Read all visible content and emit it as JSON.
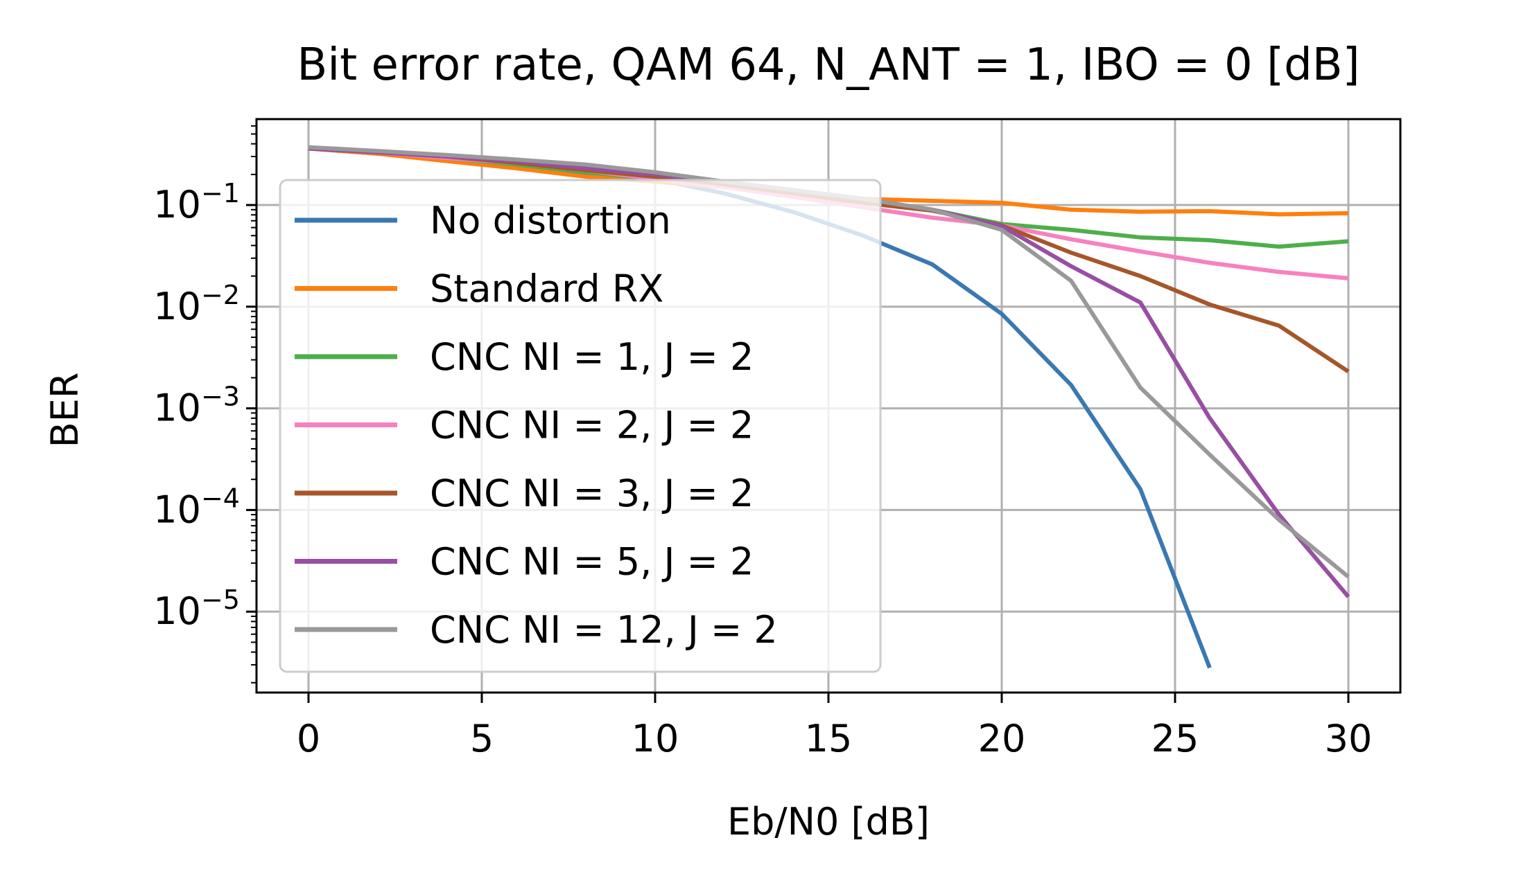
{
  "chart_data": {
    "type": "line",
    "title": "Bit error rate, QAM 64, N_ANT = 1, IBO = 0 [dB]",
    "xlabel": "Eb/N0 [dB]",
    "ylabel": "BER",
    "xlim": [
      -1.5,
      31.5
    ],
    "ylim": [
      1.6e-06,
      0.7
    ],
    "yscale": "log",
    "grid": true,
    "legend_position": "center-left",
    "x_ticks": [
      "0",
      "5",
      "10",
      "15",
      "20",
      "25",
      "30"
    ],
    "x_tick_values": [
      0,
      5,
      10,
      15,
      20,
      25,
      30
    ],
    "y_tick_exponents": [
      "−1",
      "−2",
      "−3",
      "−4",
      "−5"
    ],
    "y_tick_values": [
      0.1,
      0.01,
      0.001,
      0.0001,
      1e-05
    ],
    "y_tick_base": "10",
    "x": [
      0,
      2,
      4,
      6,
      8,
      10,
      12,
      14,
      16,
      18,
      20,
      22,
      24,
      26,
      28,
      30
    ],
    "series": [
      {
        "name": "No distortion",
        "color": "#3979b2",
        "values": [
          0.36,
          0.32,
          0.28,
          0.24,
          0.2,
          0.18,
          0.13,
          0.085,
          0.05,
          0.026,
          0.0085,
          0.0017,
          0.00016,
          2.8e-06,
          null,
          null
        ]
      },
      {
        "name": "Standard RX",
        "color": "#ff7f0e",
        "values": [
          0.36,
          0.32,
          0.27,
          0.23,
          0.19,
          0.17,
          0.15,
          0.13,
          0.115,
          0.11,
          0.105,
          0.09,
          0.086,
          0.087,
          0.081,
          0.083
        ]
      },
      {
        "name": "CNC NI = 1, J = 2",
        "color": "#4daf4a",
        "values": [
          0.36,
          0.33,
          0.29,
          0.25,
          0.21,
          0.18,
          0.16,
          0.13,
          0.11,
          0.09,
          0.065,
          0.057,
          0.048,
          0.045,
          0.039,
          0.044
        ]
      },
      {
        "name": "CNC NI = 2, J = 2",
        "color": "#f781bf",
        "values": [
          0.36,
          0.33,
          0.29,
          0.26,
          0.22,
          0.18,
          0.15,
          0.12,
          0.095,
          0.075,
          0.063,
          0.046,
          0.035,
          0.027,
          0.022,
          0.019
        ]
      },
      {
        "name": "CNC NI = 3, J = 2",
        "color": "#a65628",
        "values": [
          0.36,
          0.33,
          0.3,
          0.26,
          0.22,
          0.19,
          0.16,
          0.13,
          0.105,
          0.088,
          0.063,
          0.034,
          0.02,
          0.0105,
          0.0065,
          0.0023
        ]
      },
      {
        "name": "CNC NI = 5, J = 2",
        "color": "#984ea3",
        "values": [
          0.36,
          0.33,
          0.3,
          0.27,
          0.23,
          0.2,
          0.17,
          0.14,
          0.115,
          0.09,
          0.062,
          0.025,
          0.011,
          0.0008,
          9e-05,
          1.4e-05
        ]
      },
      {
        "name": "CNC NI = 12, J = 2",
        "color": "#999999",
        "values": [
          0.37,
          0.34,
          0.31,
          0.28,
          0.25,
          0.21,
          0.17,
          0.14,
          0.115,
          0.09,
          0.057,
          0.018,
          0.0016,
          0.00035,
          8e-05,
          2.2e-05
        ]
      }
    ]
  }
}
